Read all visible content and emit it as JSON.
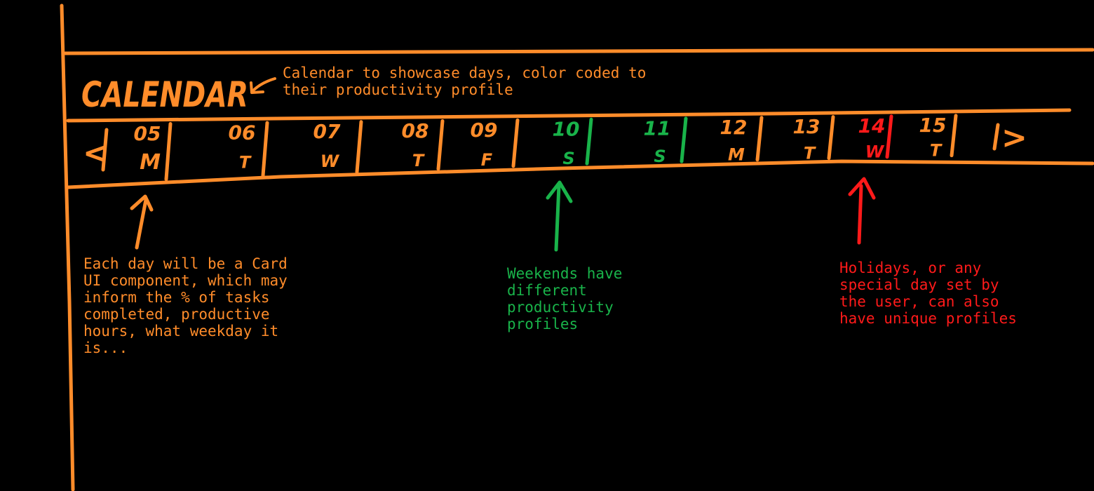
{
  "colors": {
    "orange": "#ff8c2a",
    "green": "#19b34a",
    "red": "#ff1a1a",
    "background": "#000000"
  },
  "calendar": {
    "title": "CALENDAR",
    "prev_glyph": "<",
    "next_glyph": ">",
    "days": [
      {
        "day": "05",
        "weekday": "M",
        "profile": "normal"
      },
      {
        "day": "06",
        "weekday": "T",
        "profile": "normal"
      },
      {
        "day": "07",
        "weekday": "W",
        "profile": "normal"
      },
      {
        "day": "08",
        "weekday": "T",
        "profile": "normal"
      },
      {
        "day": "09",
        "weekday": "F",
        "profile": "normal"
      },
      {
        "day": "10",
        "weekday": "S",
        "profile": "weekend"
      },
      {
        "day": "11",
        "weekday": "S",
        "profile": "weekend"
      },
      {
        "day": "12",
        "weekday": "M",
        "profile": "normal"
      },
      {
        "day": "13",
        "weekday": "T",
        "profile": "normal"
      },
      {
        "day": "14",
        "weekday": "W",
        "profile": "holiday"
      },
      {
        "day": "15",
        "weekday": "T",
        "profile": "normal"
      }
    ]
  },
  "notes": {
    "header": "Calendar to showcase days, color coded to\ntheir productivity profile",
    "card": "Each day will be a Card\nUI component, which may\ninform the % of tasks\ncompleted, productive\nhours, what weekday it\nis...",
    "weekend": "Weekends have\ndifferent\nproductivity\nprofiles",
    "holiday": "Holidays, or any\nspecial day set by\nthe user, can also\nhave unique profiles"
  }
}
